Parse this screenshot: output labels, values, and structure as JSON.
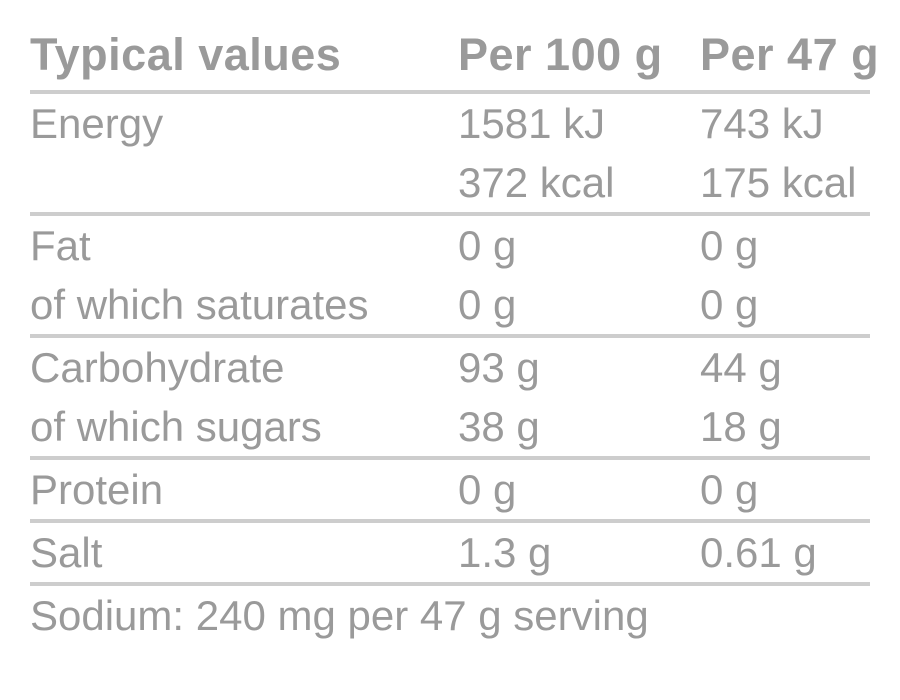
{
  "table": {
    "header": {
      "label": "Typical values",
      "per100": "Per 100 g",
      "per47": "Per 47 g"
    },
    "rows": [
      {
        "label": "Energy",
        "per100": "1581 kJ",
        "per47": "743 kJ"
      },
      {
        "label": "",
        "per100": "372 kcal",
        "per47": "175 kcal"
      },
      {
        "label": "Fat",
        "per100": "0 g",
        "per47": "0 g"
      },
      {
        "label": "of which saturates",
        "per100": "0 g",
        "per47": "0 g"
      },
      {
        "label": "Carbohydrate",
        "per100": "93 g",
        "per47": "44 g"
      },
      {
        "label": "of which sugars",
        "per100": "38 g",
        "per47": "18 g"
      },
      {
        "label": "Protein",
        "per100": "0 g",
        "per47": "0 g"
      },
      {
        "label": "Salt",
        "per100": "1.3 g",
        "per47": "0.61 g"
      }
    ],
    "footnote": "Sodium: 240 mg per 47 g serving",
    "colors": {
      "text": "#9a9a9a",
      "rule": "#cdcdcd",
      "background": "#ffffff"
    }
  }
}
